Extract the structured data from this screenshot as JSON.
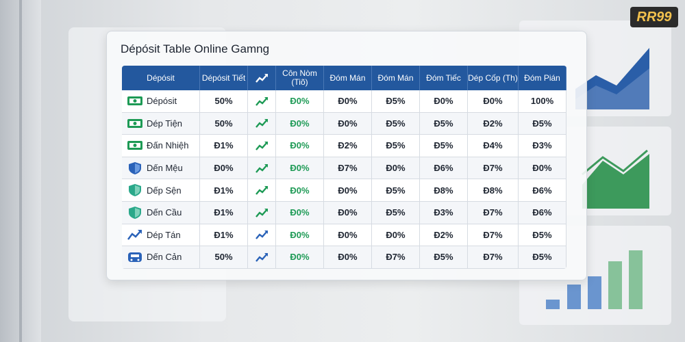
{
  "logo": "RR99",
  "title": "Dépósit Table Online Gamng",
  "table": {
    "header": [
      "Dépósit",
      "Dépósit Tiết",
      "Côn Nòm (Tiõ)",
      "Đóm Mán",
      "Đóm Mán",
      "Đóm Tiếc",
      "Dép Cốp (Th)",
      "Đóm Pián"
    ],
    "rows": [
      {
        "label": "Dépósit",
        "values": [
          "50%",
          "Đ0%",
          "Đ0%",
          "Đ5%",
          "Đ0%",
          "Đ0%",
          "100%"
        ]
      },
      {
        "label": "Dép Tiện",
        "values": [
          "50%",
          "Đ0%",
          "Đ0%",
          "Đ5%",
          "Đ5%",
          "Đ2%",
          "Đ5%"
        ]
      },
      {
        "label": "Đấn Nhiệh",
        "values": [
          "Đ1%",
          "Đ0%",
          "Đ2%",
          "Đ5%",
          "Đ5%",
          "Đ4%",
          "Đ3%"
        ]
      },
      {
        "label": "Dến Mệu",
        "values": [
          "Đ0%",
          "Đ0%",
          "Đ7%",
          "Đ0%",
          "Đ6%",
          "Đ7%",
          "Đ0%"
        ]
      },
      {
        "label": "Dếp Sện",
        "values": [
          "Đ1%",
          "Đ0%",
          "Đ0%",
          "Đ5%",
          "Đ8%",
          "Đ8%",
          "Đ6%"
        ]
      },
      {
        "label": "Dến Cầu",
        "values": [
          "Đ1%",
          "Đ0%",
          "Đ0%",
          "Đ5%",
          "Đ3%",
          "Đ7%",
          "Đ6%"
        ]
      },
      {
        "label": "Dép Tán",
        "values": [
          "Đ1%",
          "Đ0%",
          "Đ0%",
          "Đ0%",
          "Đ2%",
          "Đ7%",
          "Đ5%"
        ]
      },
      {
        "label": "Dến Cản",
        "values": [
          "50%",
          "Đ0%",
          "Đ0%",
          "Đ7%",
          "Đ5%",
          "Đ7%",
          "Đ5%"
        ]
      }
    ]
  }
}
